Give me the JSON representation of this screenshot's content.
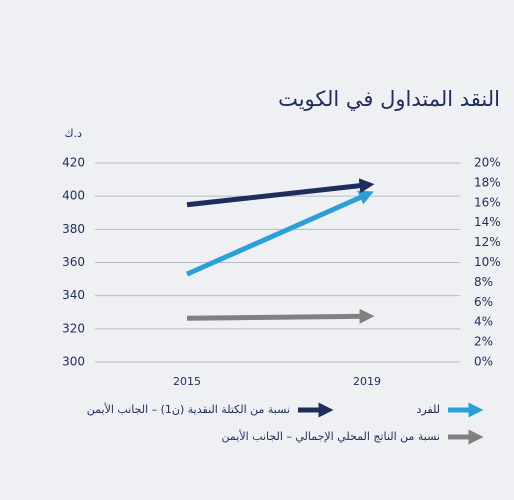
{
  "chart_data": {
    "type": "line",
    "title": "النقد المتداول في الكويت",
    "y_unit": "د.ك",
    "categories": [
      "2015",
      "2019"
    ],
    "ylim": [
      300,
      420
    ],
    "yticks": [
      300,
      320,
      340,
      360,
      380,
      400,
      420
    ],
    "y2lim": [
      0,
      20
    ],
    "y2ticks": [
      {
        "value": 0,
        "label": "0%"
      },
      {
        "value": 2,
        "label": "2%"
      },
      {
        "value": 4,
        "label": "4%"
      },
      {
        "value": 6,
        "label": "6%"
      },
      {
        "value": 8,
        "label": "8%"
      },
      {
        "value": 10,
        "label": "10%"
      },
      {
        "value": 12,
        "label": "12%"
      },
      {
        "value": 14,
        "label": "14%"
      },
      {
        "value": 16,
        "label": "16%"
      },
      {
        "value": 18,
        "label": "18%"
      },
      {
        "value": 20,
        "label": "20%"
      }
    ],
    "grid": true,
    "series": [
      {
        "name": "للفرد",
        "color": "#2b9fd8",
        "values": [
          353,
          401
        ]
      },
      {
        "name": "نسبة من الكتلة النقدية (ن1) – الجانب الأيمن",
        "color": "#1f2d5c",
        "axis": "y2",
        "values": [
          15.8,
          17.8
        ]
      },
      {
        "name": "نسبة من الناتج المحلي الإجمالي – الجانب الأيمن",
        "color": "#808080",
        "axis": "y2",
        "values": [
          4.4,
          4.6
        ]
      }
    ]
  }
}
